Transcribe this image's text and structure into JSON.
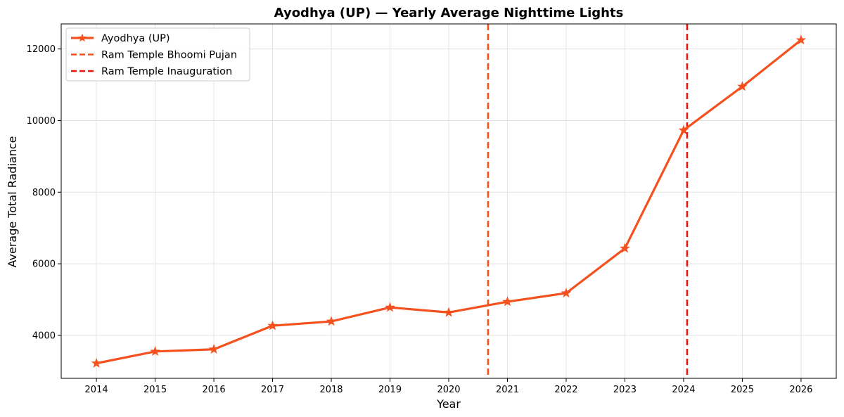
{
  "chart_data": {
    "type": "line",
    "title": "Ayodhya (UP) — Yearly Average Nighttime Lights",
    "xlabel": "Year",
    "ylabel": "Average Total Radiance",
    "x": [
      2014,
      2015,
      2016,
      2017,
      2018,
      2019,
      2020,
      2021,
      2022,
      2023,
      2024,
      2025,
      2026
    ],
    "series": [
      {
        "name": "Ayodhya (UP)",
        "color": "#f4511e",
        "marker": "star",
        "values": [
          3220,
          3550,
          3610,
          4270,
          4390,
          4780,
          4640,
          4940,
          5180,
          6430,
          9730,
          10950,
          12250
        ]
      }
    ],
    "annotations": [
      {
        "type": "vline",
        "x": 2020.67,
        "label": "Ram Temple Bhoomi Pujan",
        "color": "#f4511e",
        "style": "dashed"
      },
      {
        "type": "vline",
        "x": 2024.06,
        "label": "Ram Temple Inauguration",
        "color": "#e8160c",
        "style": "dashed"
      }
    ],
    "xlim": [
      2013.4,
      2026.6
    ],
    "ylim": [
      2800,
      12700
    ],
    "xticks": [
      "2014",
      "2015",
      "2016",
      "2017",
      "2018",
      "2019",
      "2020",
      "2021",
      "2022",
      "2023",
      "2024",
      "2025",
      "2026"
    ],
    "yticks": [
      "4000",
      "6000",
      "8000",
      "10000",
      "12000"
    ],
    "grid": true,
    "legend_position": "top-left"
  }
}
